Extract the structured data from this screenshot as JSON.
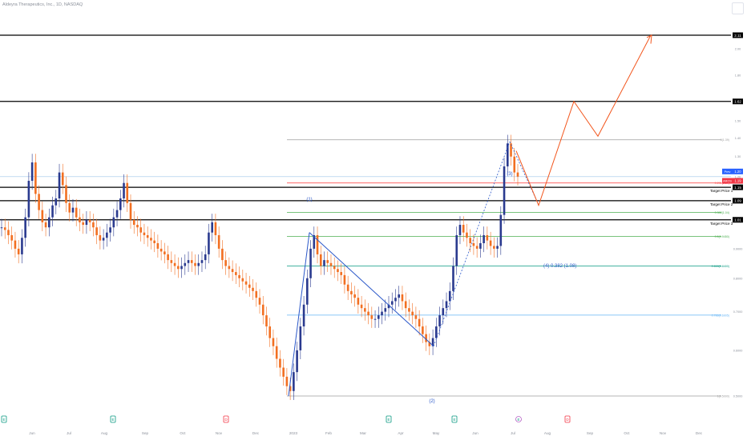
{
  "title": "Aldeyra Therapeutics, Inc., 1D, NASDAQ",
  "chart_data": {
    "type": "candlestick",
    "y_axis": {
      "scale": "log",
      "ylim": [
        0.4,
        2.7
      ],
      "ticks": [
        "2.11",
        "2.00",
        "1.80",
        "1.62",
        "1.50",
        "1.40",
        "1.30",
        "1.20",
        "1.15",
        "1.09",
        "1.01",
        "0.9000",
        "0.8000",
        "0.7000",
        "0.6000",
        "0.5000",
        "0.4000"
      ]
    },
    "x_axis": {
      "tick_labels": [
        "Jun",
        "Jul",
        "Aug",
        "Sep",
        "Oct",
        "Nov",
        "Dec",
        "2023",
        "Feb",
        "Mar",
        "Apr",
        "May",
        "Jun",
        "Jul",
        "Aug",
        "Sep",
        "Oct",
        "Nov",
        "Dec"
      ]
    },
    "price_series": [
      0.98,
      0.97,
      0.95,
      0.93,
      0.9,
      0.88,
      0.94,
      1.02,
      1.18,
      1.27,
      1.12,
      1.05,
      1.0,
      0.98,
      1.02,
      1.07,
      1.1,
      1.22,
      1.16,
      1.08,
      1.04,
      1.06,
      1.02,
      1.0,
      0.99,
      1.01,
      1.0,
      0.98,
      0.95,
      0.93,
      0.94,
      0.96,
      0.98,
      1.02,
      1.05,
      1.1,
      1.17,
      1.08,
      1.01,
      0.99,
      0.98,
      0.96,
      0.95,
      0.94,
      0.93,
      0.92,
      0.9,
      0.89,
      0.88,
      0.86,
      0.85,
      0.84,
      0.83,
      0.84,
      0.85,
      0.86,
      0.85,
      0.84,
      0.85,
      0.86,
      0.88,
      0.96,
      1.0,
      0.95,
      0.9,
      0.86,
      0.84,
      0.83,
      0.82,
      0.81,
      0.8,
      0.79,
      0.78,
      0.77,
      0.76,
      0.74,
      0.72,
      0.69,
      0.66,
      0.63,
      0.61,
      0.58,
      0.56,
      0.54,
      0.52,
      0.51,
      0.55,
      0.6,
      0.66,
      0.72,
      0.8,
      0.9,
      0.95,
      0.88,
      0.84,
      0.86,
      0.85,
      0.84,
      0.83,
      0.82,
      0.81,
      0.78,
      0.76,
      0.75,
      0.74,
      0.72,
      0.71,
      0.7,
      0.69,
      0.68,
      0.68,
      0.69,
      0.7,
      0.71,
      0.72,
      0.73,
      0.74,
      0.75,
      0.73,
      0.71,
      0.7,
      0.69,
      0.68,
      0.66,
      0.64,
      0.62,
      0.61,
      0.63,
      0.66,
      0.69,
      0.71,
      0.73,
      0.76,
      0.84,
      0.95,
      0.99,
      0.96,
      0.94,
      0.92,
      0.91,
      0.9,
      0.92,
      0.95,
      0.93,
      0.91,
      0.9,
      0.91,
      1.03,
      1.25,
      1.37,
      1.3,
      1.22,
      1.2
    ],
    "horizontal_levels": [
      {
        "value": 2.11,
        "label": "2.11"
      },
      {
        "value": 1.62,
        "label": "1.62"
      },
      {
        "value": 1.15,
        "label": "Target Price 1"
      },
      {
        "value": 1.09,
        "label": "Target Price 2"
      },
      {
        "value": 1.01,
        "label": "Target Price 3"
      }
    ],
    "fibonacci_levels": [
      {
        "label": "0(1.39)",
        "value": 1.39
      },
      {
        "label": "0.236(1.17)",
        "value": 1.17
      },
      {
        "label": "0.382(1.04)",
        "value": 1.04
      },
      {
        "label": "0.5(0.9450)",
        "value": 0.945
      },
      {
        "label": "0.618(0.8400)",
        "value": 0.84
      },
      {
        "label": "0.786(0.6905)",
        "value": 0.6905
      },
      {
        "label": "1(0.5000)",
        "value": 0.5
      }
    ],
    "price_tags": [
      {
        "label": "Prev",
        "value": "1.20"
      },
      {
        "label": "AROS",
        "value": "1.19"
      }
    ],
    "wave_labels": [
      "(1)",
      "(2)",
      "(3)",
      "(4) 0.382 (1.08)"
    ],
    "colors": {
      "up": "#2a3a8f",
      "down": "#f26f21",
      "projection": "#f2561d",
      "wave_line": "#2b58c9",
      "black_level": "#000000",
      "prev_price": "#2962ff",
      "last_price": "#f23645",
      "fib_green": "#4caf50",
      "fib_teal": "#089981",
      "fib_blue": "#64b5f6",
      "fib_gray": "#9e9e9e",
      "fib_orange": "#ff5252"
    },
    "event_markers": [
      "E",
      "E",
      "D",
      "E",
      "E",
      "D",
      "E"
    ]
  }
}
